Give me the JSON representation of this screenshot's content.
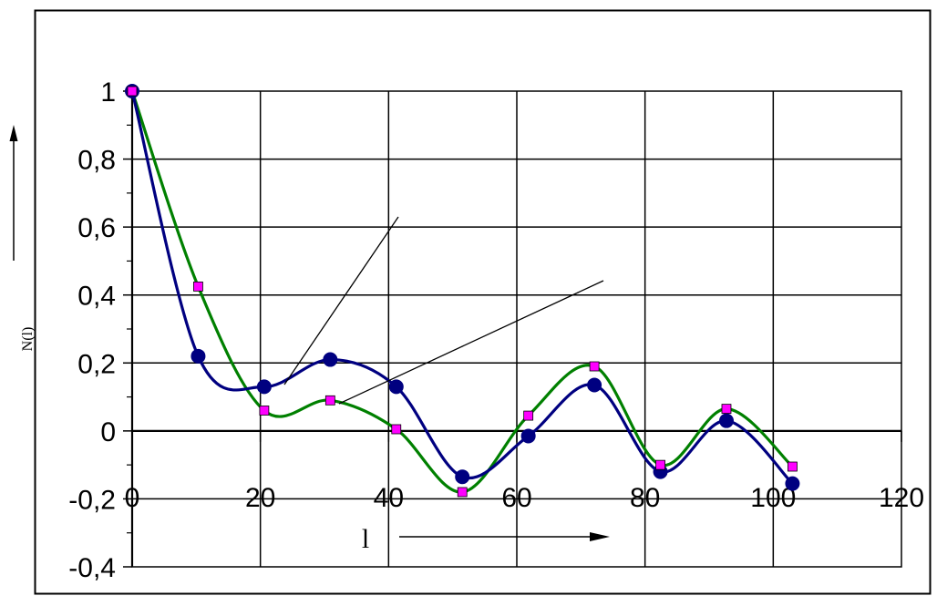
{
  "chart_data": {
    "type": "line",
    "title": "",
    "xlabel": "l",
    "ylabel": "N(l)",
    "xlim": [
      0,
      120
    ],
    "ylim": [
      -0.4,
      1
    ],
    "grid": true,
    "x_ticks": [
      "0",
      "20",
      "40",
      "60",
      "80",
      "100",
      "120"
    ],
    "y_ticks": [
      "-0,4",
      "-0,2",
      "0",
      "0,2",
      "0,4",
      "0,6",
      "0,8",
      "1"
    ],
    "series": [
      {
        "marker": "circle",
        "color": "#000080",
        "x": [
          0,
          10.3,
          20.6,
          30.9,
          41.2,
          51.5,
          61.8,
          72.1,
          82.4,
          92.7,
          103
        ],
        "values": [
          1,
          0.22,
          0.13,
          0.21,
          0.13,
          -0.135,
          -0.015,
          0.135,
          -0.12,
          0.03,
          -0.155
        ]
      },
      {
        "marker": "square",
        "color": "#008000",
        "marker_fill": "#ff00ff",
        "x": [
          0,
          10.3,
          20.6,
          30.9,
          41.2,
          51.5,
          61.8,
          72.1,
          82.4,
          92.7,
          103
        ],
        "values": [
          1,
          0.425,
          0.06,
          0.09,
          0.005,
          -0.18,
          0.045,
          0.19,
          -0.1,
          0.065,
          -0.105
        ]
      }
    ],
    "colors": {
      "grid": "#000000",
      "frame": "#000000"
    }
  }
}
